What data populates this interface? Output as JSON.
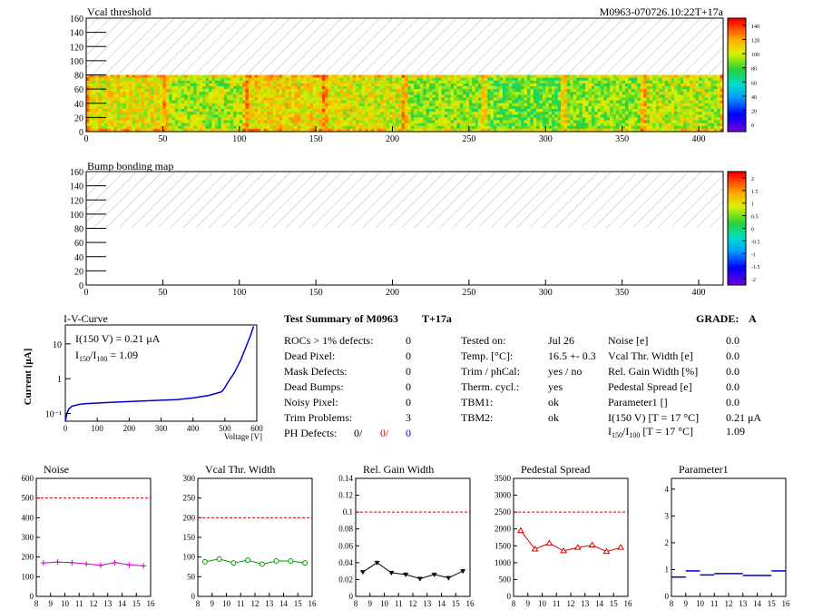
{
  "header": {
    "map1_title": "Vcal threshold",
    "module_id": "M0963-070726.10:22T+17a",
    "map2_title": "Bump bonding map"
  },
  "maps": {
    "x_ticks": [
      "0",
      "50",
      "100",
      "150",
      "200",
      "250",
      "300",
      "350",
      "400"
    ],
    "y_ticks": [
      "0",
      "20",
      "40",
      "60",
      "80",
      "100",
      "120",
      "140",
      "160"
    ],
    "xlim": [
      0,
      416
    ],
    "ylim": [
      0,
      160
    ],
    "filled_rows_upto": 80,
    "palette_z1": [
      "0",
      "20",
      "40",
      "60",
      "80",
      "100",
      "120",
      "140"
    ],
    "palette_z2": [
      "-2",
      "-1.5",
      "-1",
      "-0.5",
      "0",
      "0.5",
      "1",
      "1.5",
      "2"
    ]
  },
  "iv": {
    "title": "I-V-Curve",
    "ylabel": "Current [μA]",
    "xlabel": "Voltage [V]",
    "line1": "I(150 V) = 0.21 μA",
    "line2_pre": "I",
    "line2_sub1": "150",
    "line2_mid": "/I",
    "line2_sub2": "100",
    "line2_post": " =  1.09",
    "x_ticks": [
      "0",
      "100",
      "200",
      "300",
      "400",
      "500",
      "600"
    ],
    "y_ticks": [
      "10⁻¹",
      "1",
      "10"
    ]
  },
  "summary": {
    "title": "Test Summary of M0963",
    "temp_tag": "T+17a",
    "grade_label": "GRADE:",
    "grade_value": "A",
    "col1": [
      {
        "label": "ROCs > 1% defects:",
        "value": "0"
      },
      {
        "label": "Dead Pixel:",
        "value": "0"
      },
      {
        "label": "Mask Defects:",
        "value": "0"
      },
      {
        "label": "Dead Bumps:",
        "value": "0"
      },
      {
        "label": "Noisy Pixel:",
        "value": "0"
      },
      {
        "label": "Trim Problems:",
        "value": "3"
      }
    ],
    "ph_label": "PH Defects:",
    "ph_values": [
      "0/",
      "0/",
      "0"
    ],
    "col2": [
      {
        "label": "Tested on:",
        "value": "Jul 26"
      },
      {
        "label": "Temp. [°C]:",
        "value": "16.5 +- 0.3"
      },
      {
        "label": "Trim / phCal:",
        "value": "yes / no"
      },
      {
        "label": "Therm. cycl.:",
        "value": "yes"
      },
      {
        "label": "TBM1:",
        "value": "ok"
      },
      {
        "label": "TBM2:",
        "value": "ok"
      }
    ],
    "col3": [
      {
        "label": "Noise [e]",
        "value": "0.0"
      },
      {
        "label": "Vcal Thr. Width [e]",
        "value": "0.0"
      },
      {
        "label": "Rel. Gain Width [%]",
        "value": "0.0"
      },
      {
        "label": "Pedestal Spread [e]",
        "value": "0.0"
      },
      {
        "label": "Parameter1 []",
        "value": "0.0"
      },
      {
        "label": "I(150 V) [T = 17 °C]",
        "value": "0.21 μA"
      }
    ],
    "ratio_label_pre": "I",
    "ratio_sub1": "150",
    "ratio_mid": "/I",
    "ratio_sub2": "100",
    "ratio_post": "  [T = 17 °C]",
    "ratio_value": "1.09"
  },
  "chart_data": [
    {
      "type": "line",
      "title": "Noise",
      "x": [
        8.5,
        9.5,
        10.5,
        11.5,
        12.5,
        13.5,
        14.5,
        15.5
      ],
      "values": [
        170,
        175,
        172,
        165,
        158,
        172,
        160,
        155
      ],
      "ylim": [
        0,
        600
      ],
      "ref_line": 500,
      "x_ticks": [
        "8",
        "9",
        "10",
        "11",
        "12",
        "13",
        "14",
        "15",
        "16"
      ],
      "y_ticks": [
        "0",
        "100",
        "200",
        "300",
        "400",
        "500",
        "600"
      ],
      "color": "#cc00cc",
      "marker": "plus"
    },
    {
      "type": "line",
      "title": "Vcal Thr. Width",
      "x": [
        8.5,
        9.5,
        10.5,
        11.5,
        12.5,
        13.5,
        14.5,
        15.5
      ],
      "values": [
        88,
        95,
        85,
        92,
        82,
        90,
        90,
        85
      ],
      "ylim": [
        0,
        300
      ],
      "ref_line": 200,
      "x_ticks": [
        "8",
        "9",
        "10",
        "11",
        "12",
        "13",
        "14",
        "15",
        "16"
      ],
      "y_ticks": [
        "0",
        "50",
        "100",
        "150",
        "200",
        "250",
        "300"
      ],
      "color": "#009900",
      "marker": "circle"
    },
    {
      "type": "line",
      "title": "Rel. Gain Width",
      "x": [
        8.5,
        9.5,
        10.5,
        11.5,
        12.5,
        13.5,
        14.5,
        15.5
      ],
      "values": [
        0.029,
        0.04,
        0.028,
        0.026,
        0.021,
        0.026,
        0.022,
        0.03
      ],
      "ylim": [
        0,
        0.14
      ],
      "ref_line": 0.1,
      "x_ticks": [
        "8",
        "9",
        "10",
        "11",
        "12",
        "13",
        "14",
        "15",
        "16"
      ],
      "y_ticks": [
        "0",
        "0.02",
        "0.04",
        "0.06",
        "0.08",
        "0.1",
        "0.12",
        "0.14"
      ],
      "color": "#000000",
      "marker": "triangle-down"
    },
    {
      "type": "line",
      "title": "Pedestal Spread",
      "x": [
        8.5,
        9.5,
        10.5,
        11.5,
        12.5,
        13.5,
        14.5,
        15.5
      ],
      "values": [
        1950,
        1400,
        1580,
        1350,
        1450,
        1520,
        1330,
        1450
      ],
      "ylim": [
        0,
        3500
      ],
      "ref_line": 2500,
      "x_ticks": [
        "8",
        "9",
        "10",
        "11",
        "12",
        "13",
        "14",
        "15",
        "16"
      ],
      "y_ticks": [
        "0",
        "500",
        "1000",
        "1500",
        "2000",
        "2500",
        "3000",
        "3500"
      ],
      "color": "#dd0000",
      "marker": "triangle-up"
    },
    {
      "type": "step",
      "title": "Parameter1",
      "x": [
        8.5,
        9.5,
        10.5,
        11.5,
        12.5,
        13.5,
        14.5,
        15.5
      ],
      "values": [
        0.72,
        0.95,
        0.8,
        0.85,
        0.85,
        0.78,
        0.78,
        0.95
      ],
      "ylim": [
        0,
        4.4
      ],
      "x_ticks": [
        "8",
        "9",
        "10",
        "11",
        "12",
        "13",
        "14",
        "15",
        "16"
      ],
      "y_ticks": [
        "0",
        "1",
        "2",
        "3",
        "4"
      ],
      "color": "#0000cc",
      "marker": "none"
    },
    {
      "type": "line",
      "title": "I-V-Curve",
      "log_y": true,
      "xlim": [
        0,
        600
      ],
      "ylim": [
        0.06,
        35
      ],
      "x": [
        0,
        5,
        10,
        20,
        40,
        60,
        100,
        150,
        200,
        250,
        300,
        350,
        400,
        450,
        490,
        500,
        510,
        530,
        550,
        570,
        580,
        590
      ],
      "values": [
        0.06,
        0.1,
        0.13,
        0.16,
        0.18,
        0.19,
        0.2,
        0.21,
        0.22,
        0.23,
        0.24,
        0.25,
        0.28,
        0.33,
        0.42,
        0.55,
        0.8,
        1.5,
        3.5,
        10,
        17,
        32
      ],
      "color": "#0000cc"
    }
  ]
}
